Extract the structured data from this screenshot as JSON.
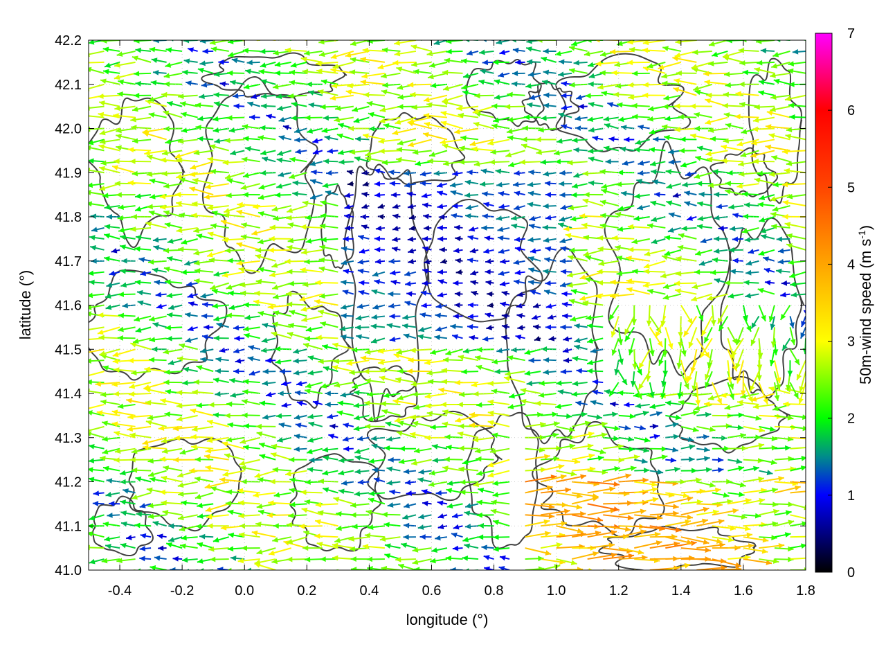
{
  "chart_data": {
    "type": "vector-field",
    "xlabel": "longitude (°)",
    "ylabel": "latitude (°)",
    "xlim": [
      -0.5,
      1.8
    ],
    "ylim": [
      41.0,
      42.2
    ],
    "xticks": [
      "-0.4",
      "-0.2",
      "0.0",
      "0.2",
      "0.4",
      "0.6",
      "0.8",
      "1.0",
      "1.2",
      "1.4",
      "1.6",
      "1.8"
    ],
    "xtick_values": [
      -0.4,
      -0.2,
      0.0,
      0.2,
      0.4,
      0.6,
      0.8,
      1.0,
      1.2,
      1.4,
      1.6,
      1.8
    ],
    "yticks": [
      "41.0",
      "41.1",
      "41.2",
      "41.3",
      "41.4",
      "41.5",
      "41.6",
      "41.7",
      "41.8",
      "41.9",
      "42.0",
      "42.1",
      "42.2"
    ],
    "ytick_values": [
      41.0,
      41.1,
      41.2,
      41.3,
      41.4,
      41.5,
      41.6,
      41.7,
      41.8,
      41.9,
      42.0,
      42.1,
      42.2
    ],
    "grid": "dotted",
    "colorbar": {
      "label_main": "50m-wind speed (m s",
      "label_sup": "-1",
      "label_end": ")",
      "range": [
        0,
        7
      ],
      "ticks": [
        "0",
        "1",
        "2",
        "3",
        "4",
        "5",
        "6",
        "7"
      ],
      "tick_values": [
        0,
        1,
        2,
        3,
        4,
        5,
        6,
        7
      ],
      "stops": [
        {
          "value": 0,
          "color": "#000000"
        },
        {
          "value": 1,
          "color": "#0000ff"
        },
        {
          "value": 1.5,
          "color": "#008b8b"
        },
        {
          "value": 2,
          "color": "#00ff00"
        },
        {
          "value": 3,
          "color": "#ffff00"
        },
        {
          "value": 4,
          "color": "#ffa500"
        },
        {
          "value": 5,
          "color": "#ff4500"
        },
        {
          "value": 6,
          "color": "#ff0000"
        },
        {
          "value": 7,
          "color": "#ff00ff"
        }
      ]
    },
    "contour_color": "#404040",
    "vector_field": {
      "lon_step": 0.05,
      "lat_step": 0.025,
      "max_speed": 7
    }
  }
}
